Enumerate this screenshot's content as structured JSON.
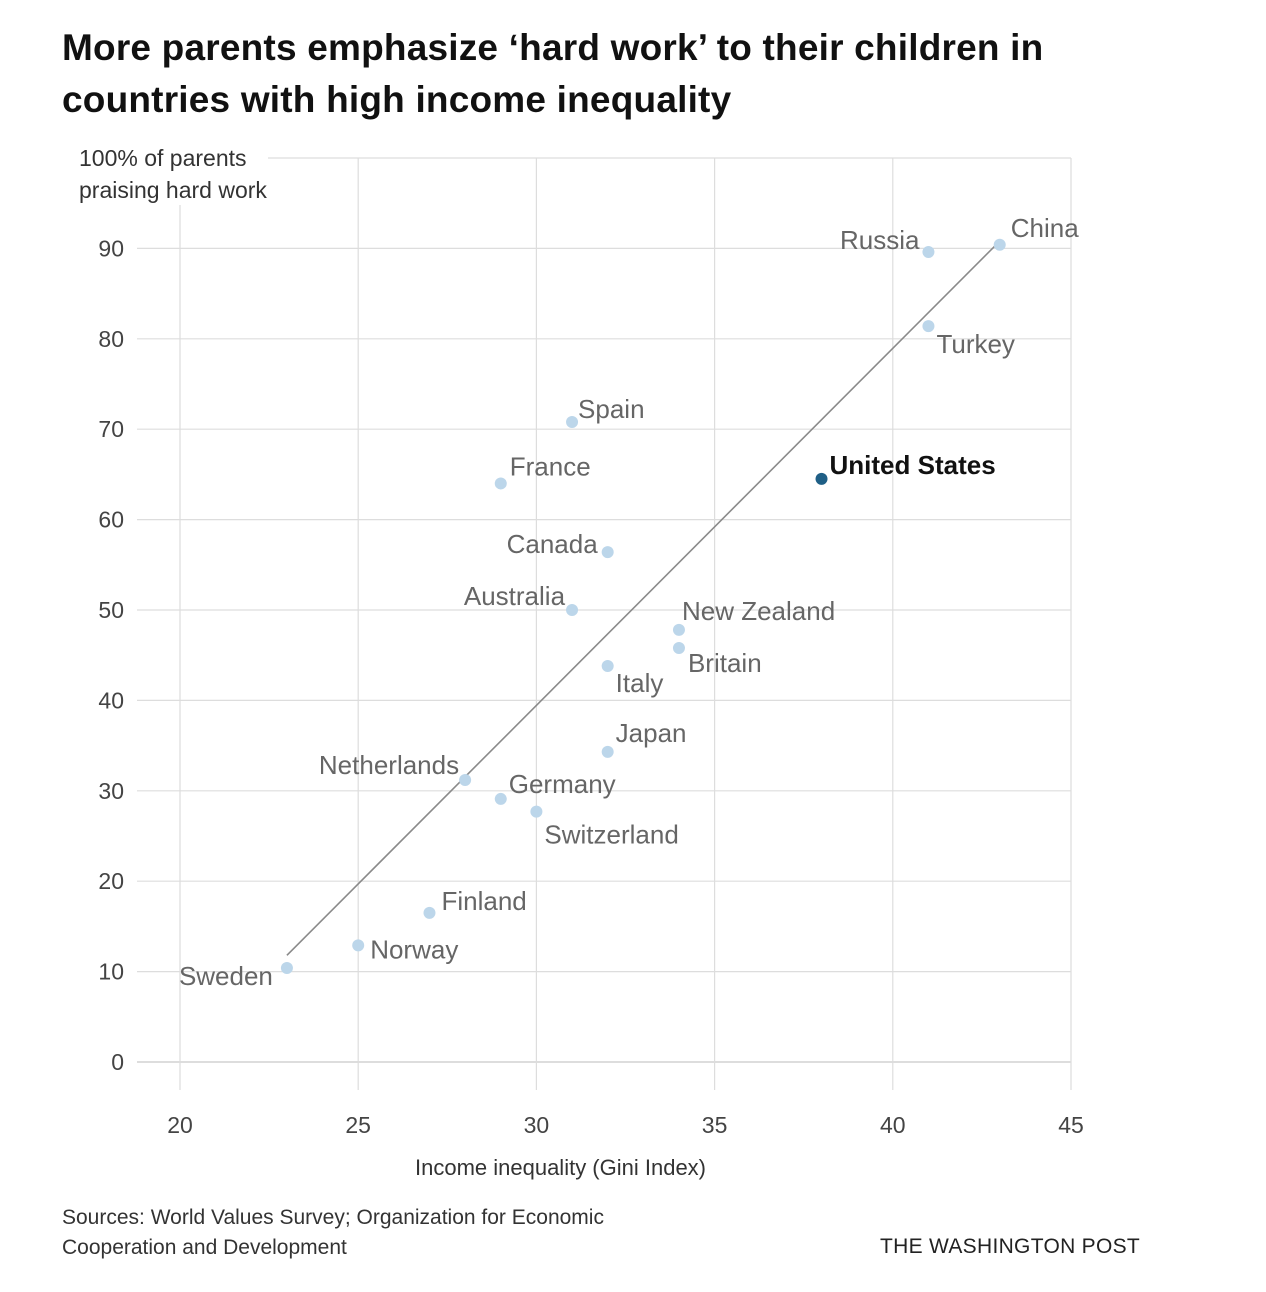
{
  "title": "More parents emphasize ‘hard work’ to their children in countries with high income inequality",
  "source": "Sources: World Values Survey; Organization for Economic Cooperation and Development",
  "credit": "THE WASHINGTON POST",
  "colors": {
    "point": "#bcd6ea",
    "highlight_point": "#1f5f86",
    "trend_line": "#8a8a8a",
    "grid": "#dddddd",
    "label": "#666666",
    "highlight_label": "#111111"
  },
  "chart_data": {
    "type": "scatter",
    "title": "More parents emphasize ‘hard work’ to their children in countries with high income inequality",
    "xlabel": "Income inequality (Gini Index)",
    "ylabel": "100% of parents praising hard work",
    "ylabel_lines": [
      "100% of parents",
      "praising hard work"
    ],
    "xlim": [
      20,
      45
    ],
    "ylim": [
      0,
      100
    ],
    "xticks": [
      20,
      25,
      30,
      35,
      40,
      45
    ],
    "yticks": [
      0,
      10,
      20,
      30,
      40,
      50,
      60,
      70,
      80,
      90
    ],
    "grid": true,
    "legend": "none",
    "trend_line": {
      "x": [
        23,
        43
      ],
      "y": [
        11.8,
        90.8
      ]
    },
    "points": [
      {
        "name": "Sweden",
        "x": 23,
        "y": 10.4,
        "label_pos": "left"
      },
      {
        "name": "Norway",
        "x": 25,
        "y": 12.9,
        "label_pos": "right-below"
      },
      {
        "name": "Finland",
        "x": 27,
        "y": 16.5,
        "label_pos": "right-above"
      },
      {
        "name": "Netherlands",
        "x": 28,
        "y": 31.2,
        "label_pos": "left-above"
      },
      {
        "name": "Germany",
        "x": 29,
        "y": 29.1,
        "label_pos": "right-above"
      },
      {
        "name": "Switzerland",
        "x": 30,
        "y": 27.7,
        "label_pos": "right-below"
      },
      {
        "name": "Japan",
        "x": 32,
        "y": 34.3,
        "label_pos": "right-above"
      },
      {
        "name": "Italy",
        "x": 32,
        "y": 43.8,
        "label_pos": "right-below"
      },
      {
        "name": "Britain",
        "x": 34,
        "y": 45.8,
        "label_pos": "right-below"
      },
      {
        "name": "New Zealand",
        "x": 34,
        "y": 47.8,
        "label_pos": "right-above"
      },
      {
        "name": "Australia",
        "x": 31,
        "y": 50.0,
        "label_pos": "left-above"
      },
      {
        "name": "Canada",
        "x": 32,
        "y": 56.4,
        "label_pos": "left"
      },
      {
        "name": "France",
        "x": 29,
        "y": 64.0,
        "label_pos": "right-above"
      },
      {
        "name": "United States",
        "x": 38,
        "y": 64.5,
        "label_pos": "right-above",
        "highlight": true
      },
      {
        "name": "Spain",
        "x": 31,
        "y": 70.8,
        "label_pos": "right-above"
      },
      {
        "name": "Turkey",
        "x": 41,
        "y": 81.4,
        "label_pos": "right-below"
      },
      {
        "name": "Russia",
        "x": 41,
        "y": 89.6,
        "label_pos": "left-above"
      },
      {
        "name": "China",
        "x": 43,
        "y": 90.4,
        "label_pos": "right-above"
      }
    ]
  }
}
